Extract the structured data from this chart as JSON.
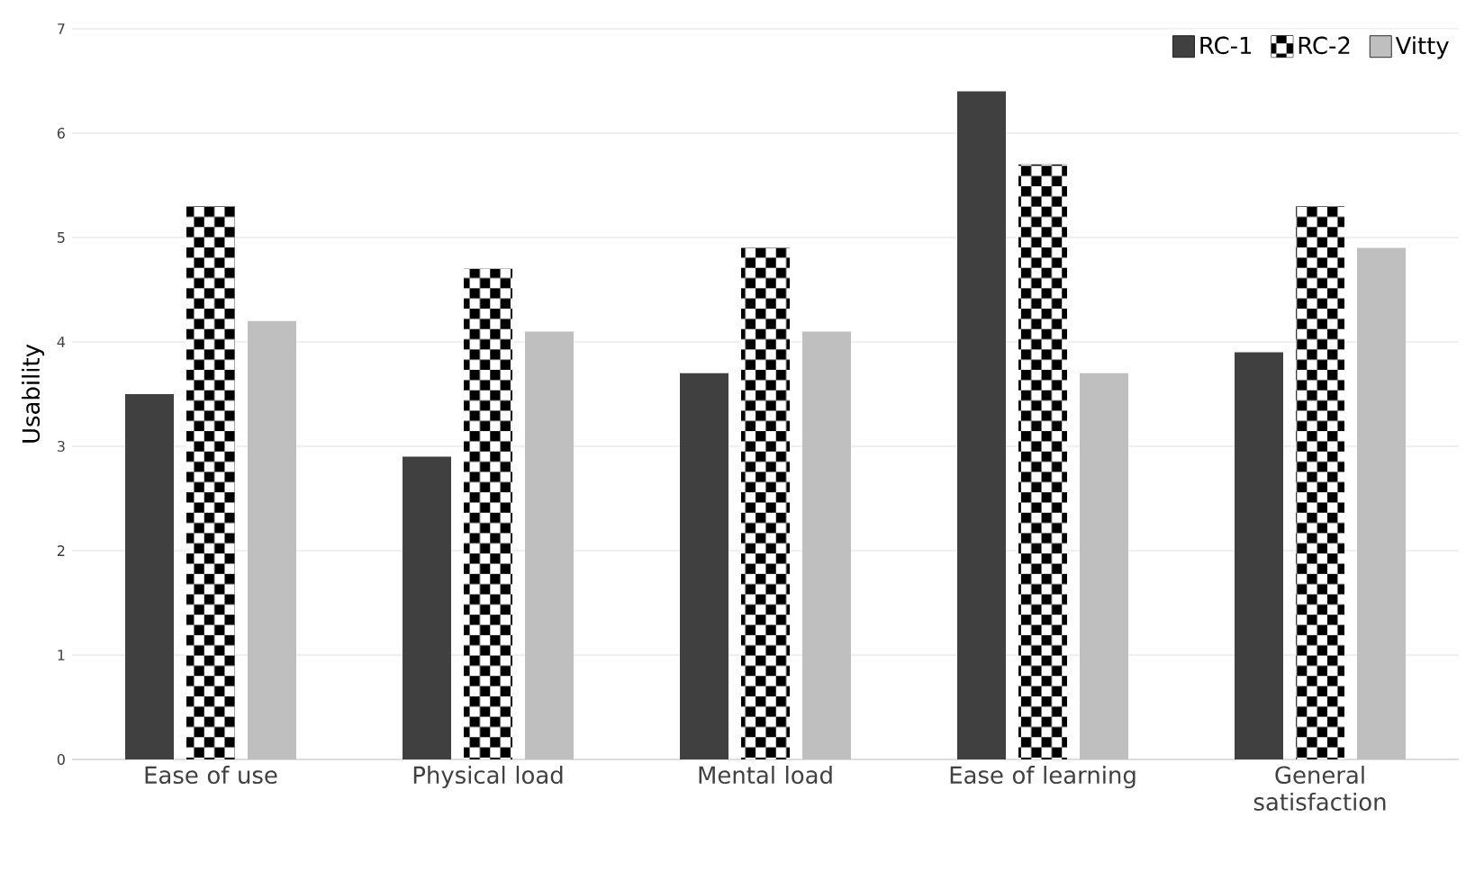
{
  "chart_data": {
    "type": "bar",
    "ylabel": "Usability",
    "categories": [
      "Ease of use",
      "Physical load",
      "Mental load",
      "Ease of learning",
      "General satisfaction"
    ],
    "series": [
      {
        "name": "RC-1",
        "color": "#404040",
        "values": [
          3.5,
          2.9,
          3.7,
          6.4,
          3.9
        ]
      },
      {
        "name": "RC-2",
        "color": "#000000",
        "values": [
          5.3,
          4.7,
          4.9,
          5.7,
          5.3
        ]
      },
      {
        "name": "Vitty",
        "color": "#bfbfbf",
        "values": [
          4.2,
          4.1,
          4.1,
          3.7,
          4.9
        ]
      }
    ],
    "ylim": [
      0,
      7
    ],
    "yticks": [
      0,
      1,
      2,
      3,
      4,
      5,
      6,
      7
    ],
    "grid": "y",
    "legend": "top right"
  }
}
